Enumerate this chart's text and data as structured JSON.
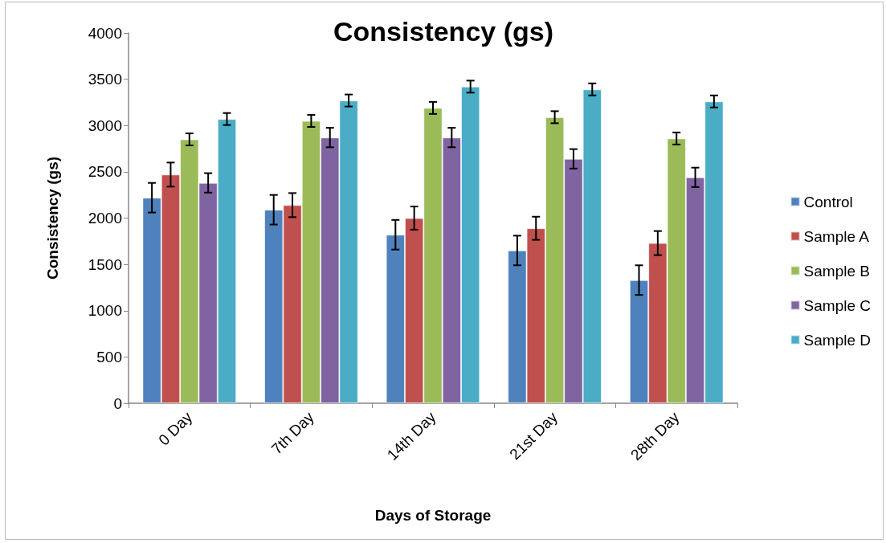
{
  "chart_data": {
    "type": "bar",
    "title": "Consistency (gs)",
    "xlabel": "Days of Storage",
    "ylabel": "Consistency (gs)",
    "categories": [
      "0 Day",
      "7th Day",
      "14th Day",
      "21st Day",
      "28th Day"
    ],
    "series": [
      {
        "name": "Control",
        "color": "#4f81bd",
        "values": [
          2220,
          2090,
          1820,
          1650,
          1330
        ],
        "errors": [
          160,
          160,
          160,
          160,
          160
        ]
      },
      {
        "name": "Sample A",
        "color": "#c0504d",
        "values": [
          2470,
          2140,
          2000,
          1890,
          1730
        ],
        "errors": [
          130,
          130,
          125,
          125,
          130
        ]
      },
      {
        "name": "Sample B",
        "color": "#9bbb59",
        "values": [
          2850,
          3050,
          3190,
          3090,
          2860
        ],
        "errors": [
          65,
          65,
          65,
          65,
          65
        ]
      },
      {
        "name": "Sample C",
        "color": "#8064a2",
        "values": [
          2380,
          2870,
          2870,
          2640,
          2440
        ],
        "errors": [
          105,
          105,
          105,
          105,
          105
        ]
      },
      {
        "name": "Sample D",
        "color": "#4bacc6",
        "values": [
          3070,
          3270,
          3420,
          3390,
          3260
        ],
        "errors": [
          65,
          65,
          65,
          65,
          65
        ]
      }
    ],
    "ylim": [
      0,
      4000
    ],
    "yticks": [
      0,
      500,
      1000,
      1500,
      2000,
      2500,
      3000,
      3500,
      4000
    ],
    "grid": false,
    "legend": "right"
  }
}
